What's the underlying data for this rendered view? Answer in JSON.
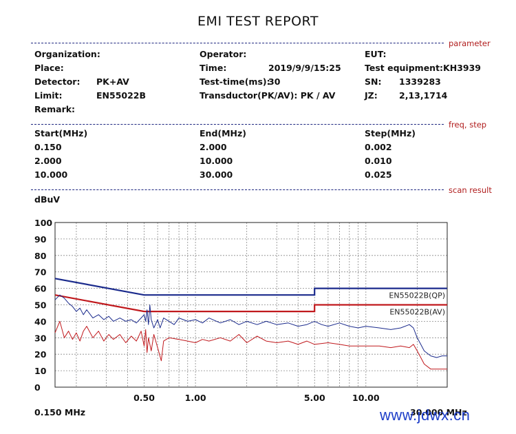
{
  "report_title": "EMI TEST REPORT",
  "sections": {
    "parameter": "parameter",
    "freq_step": "freq, step",
    "scan_result": "scan result"
  },
  "parameters": {
    "organization_label": "Organization:",
    "operator_label": "Operator:",
    "eut_label": "EUT:",
    "place_label": "Place:",
    "time_label": "Time:",
    "time_value": "2019/9/9/15:25",
    "test_equipment_label": "Test equipment:KH3939",
    "detector_label": "Detector:",
    "detector_value": "PK+AV",
    "test_time_label": "Test-time(ms):",
    "test_time_value": "30",
    "sn_label": "SN:",
    "sn_value": "1339283",
    "limit_label": "Limit:",
    "limit_value": "EN55022B",
    "transductor_label": "Transductor(PK/AV): PK  /  AV",
    "jz_label": "JZ:",
    "jz_value": "2,13,1714",
    "remark_label": "Remark:"
  },
  "freq_table": {
    "headers": [
      "Start(MHz)",
      "End(MHz)",
      "Step(MHz)"
    ],
    "rows": [
      [
        "0.150",
        "2.000",
        "0.002"
      ],
      [
        "2.000",
        "10.000",
        "0.010"
      ],
      [
        "10.000",
        "30.000",
        "0.025"
      ]
    ]
  },
  "watermark": "www.jdwx.cn",
  "chart_data": {
    "type": "line",
    "ylabel": "dBuV",
    "x_scale": "log",
    "x_unit": "MHz",
    "xlim": [
      0.15,
      30
    ],
    "ylim": [
      0,
      100
    ],
    "y_ticks": [
      0,
      10,
      20,
      30,
      40,
      50,
      60,
      70,
      80,
      90,
      100
    ],
    "x_tick_labels": [
      {
        "value": 0.5,
        "label": "0.50"
      },
      {
        "value": 1,
        "label": "1.00"
      },
      {
        "value": 5,
        "label": "5.00"
      },
      {
        "value": 10,
        "label": "10.00"
      }
    ],
    "x_start_label": "0.150 MHz",
    "x_end_label": "30.000 MHz",
    "grid": true,
    "grid_x_values": [
      0.2,
      0.3,
      0.4,
      0.5,
      0.6,
      0.7,
      0.8,
      0.9,
      1,
      2,
      3,
      4,
      5,
      6,
      7,
      8,
      9,
      10,
      20
    ],
    "limits": [
      {
        "name": "EN55022B(QP)",
        "color": "#1a2a8c",
        "points": [
          [
            0.15,
            66
          ],
          [
            0.5,
            56
          ],
          [
            5,
            56
          ],
          [
            5,
            60
          ],
          [
            30,
            60
          ]
        ]
      },
      {
        "name": "EN55022B(AV)",
        "color": "#c0181c",
        "points": [
          [
            0.15,
            56
          ],
          [
            0.5,
            46
          ],
          [
            5,
            46
          ],
          [
            5,
            50
          ],
          [
            30,
            50
          ]
        ]
      }
    ],
    "series": [
      {
        "detector": "PK",
        "color": "#1a2a8c",
        "points": [
          [
            0.15,
            53
          ],
          [
            0.16,
            56
          ],
          [
            0.17,
            54
          ],
          [
            0.18,
            51
          ],
          [
            0.19,
            49
          ],
          [
            0.2,
            46
          ],
          [
            0.21,
            48
          ],
          [
            0.22,
            44
          ],
          [
            0.23,
            47
          ],
          [
            0.25,
            42
          ],
          [
            0.27,
            44
          ],
          [
            0.29,
            41
          ],
          [
            0.31,
            43
          ],
          [
            0.33,
            40
          ],
          [
            0.36,
            42
          ],
          [
            0.39,
            40
          ],
          [
            0.42,
            41
          ],
          [
            0.45,
            39
          ],
          [
            0.48,
            42
          ],
          [
            0.5,
            44
          ],
          [
            0.51,
            40
          ],
          [
            0.52,
            47
          ],
          [
            0.53,
            38
          ],
          [
            0.54,
            50
          ],
          [
            0.55,
            41
          ],
          [
            0.57,
            36
          ],
          [
            0.6,
            41
          ],
          [
            0.62,
            36
          ],
          [
            0.65,
            42
          ],
          [
            0.7,
            40
          ],
          [
            0.75,
            38
          ],
          [
            0.8,
            42
          ],
          [
            0.9,
            40
          ],
          [
            1.0,
            41
          ],
          [
            1.1,
            39
          ],
          [
            1.2,
            42
          ],
          [
            1.4,
            39
          ],
          [
            1.6,
            41
          ],
          [
            1.8,
            38
          ],
          [
            2.0,
            40
          ],
          [
            2.3,
            38
          ],
          [
            2.6,
            40
          ],
          [
            3.0,
            38
          ],
          [
            3.5,
            39
          ],
          [
            4.0,
            37
          ],
          [
            4.5,
            38
          ],
          [
            5.0,
            40
          ],
          [
            5.5,
            38
          ],
          [
            6.0,
            37
          ],
          [
            7.0,
            39
          ],
          [
            8.0,
            37
          ],
          [
            9.0,
            36
          ],
          [
            10.0,
            37
          ],
          [
            12.0,
            36
          ],
          [
            14.0,
            35
          ],
          [
            16.0,
            36
          ],
          [
            18.0,
            38
          ],
          [
            19.0,
            36
          ],
          [
            20.0,
            30
          ],
          [
            21.0,
            26
          ],
          [
            22.0,
            22
          ],
          [
            24.0,
            19
          ],
          [
            26.0,
            18
          ],
          [
            28.0,
            19
          ],
          [
            30.0,
            19
          ]
        ]
      },
      {
        "detector": "AV",
        "color": "#c0181c",
        "points": [
          [
            0.15,
            33
          ],
          [
            0.16,
            40
          ],
          [
            0.17,
            30
          ],
          [
            0.18,
            34
          ],
          [
            0.19,
            29
          ],
          [
            0.2,
            33
          ],
          [
            0.21,
            28
          ],
          [
            0.22,
            34
          ],
          [
            0.23,
            37
          ],
          [
            0.25,
            30
          ],
          [
            0.27,
            34
          ],
          [
            0.29,
            28
          ],
          [
            0.31,
            32
          ],
          [
            0.33,
            29
          ],
          [
            0.36,
            32
          ],
          [
            0.39,
            27
          ],
          [
            0.42,
            31
          ],
          [
            0.45,
            28
          ],
          [
            0.48,
            34
          ],
          [
            0.5,
            25
          ],
          [
            0.51,
            35
          ],
          [
            0.52,
            21
          ],
          [
            0.53,
            30
          ],
          [
            0.55,
            22
          ],
          [
            0.57,
            32
          ],
          [
            0.6,
            24
          ],
          [
            0.63,
            16
          ],
          [
            0.65,
            28
          ],
          [
            0.7,
            30
          ],
          [
            0.8,
            29
          ],
          [
            0.9,
            28
          ],
          [
            1.0,
            27
          ],
          [
            1.1,
            29
          ],
          [
            1.2,
            28
          ],
          [
            1.4,
            30
          ],
          [
            1.6,
            28
          ],
          [
            1.8,
            32
          ],
          [
            2.0,
            27
          ],
          [
            2.3,
            31
          ],
          [
            2.6,
            28
          ],
          [
            3.0,
            27
          ],
          [
            3.5,
            28
          ],
          [
            4.0,
            26
          ],
          [
            4.5,
            28
          ],
          [
            5.0,
            26
          ],
          [
            6.0,
            27
          ],
          [
            7.0,
            26
          ],
          [
            8.0,
            25
          ],
          [
            10.0,
            25
          ],
          [
            12.0,
            25
          ],
          [
            14.0,
            24
          ],
          [
            16.0,
            25
          ],
          [
            18.0,
            24
          ],
          [
            19.0,
            26
          ],
          [
            20.0,
            22
          ],
          [
            21.0,
            18
          ],
          [
            22.0,
            14
          ],
          [
            24.0,
            11
          ],
          [
            26.0,
            11
          ],
          [
            28.0,
            11
          ],
          [
            30.0,
            11
          ]
        ]
      }
    ]
  }
}
